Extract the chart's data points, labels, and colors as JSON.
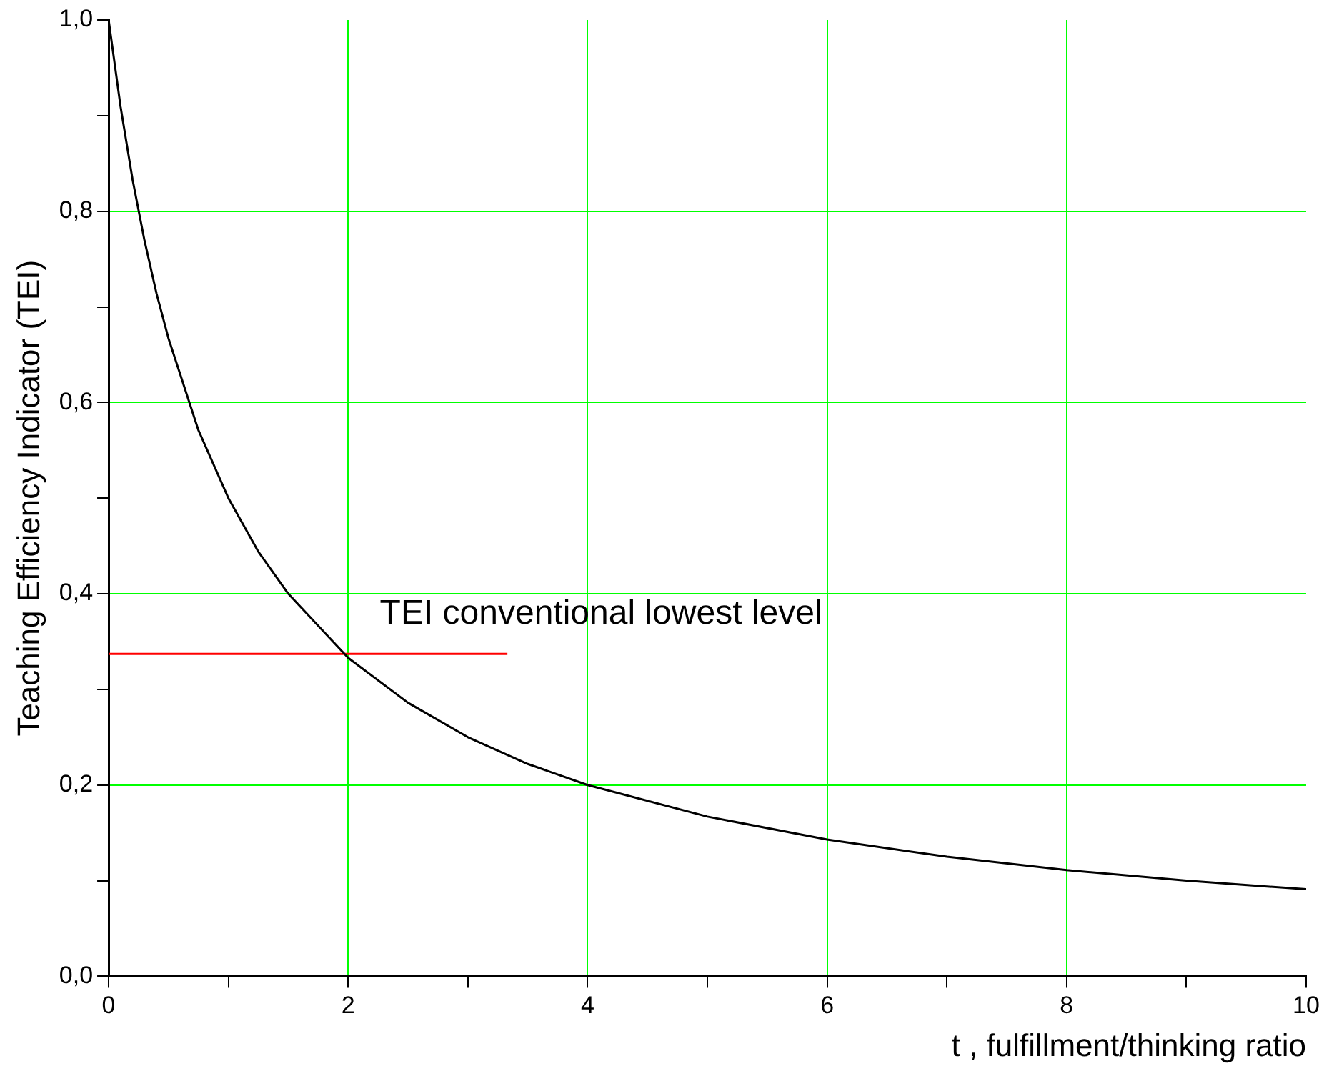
{
  "chart_data": {
    "type": "line",
    "xlabel": "t , fulfillment/thinking ratio",
    "ylabel": "Teaching Efficiency Indicator (TEI)",
    "xlim": [
      0,
      10
    ],
    "ylim": [
      0,
      1
    ],
    "xticks": [
      0,
      {
        "value": 1,
        "label": null
      },
      2,
      {
        "value": 3,
        "label": null
      },
      4,
      {
        "value": 5,
        "label": null
      },
      6,
      {
        "value": 7,
        "label": null
      },
      8,
      {
        "value": 9,
        "label": null
      },
      10
    ],
    "yticks": [
      {
        "value": 0,
        "label": "0,0"
      },
      {
        "value": 0.1,
        "label": null
      },
      {
        "value": 0.2,
        "label": "0,2"
      },
      {
        "value": 0.3,
        "label": null
      },
      {
        "value": 0.4,
        "label": "0,4"
      },
      {
        "value": 0.5,
        "label": null
      },
      {
        "value": 0.6,
        "label": "0,6"
      },
      {
        "value": 0.7,
        "label": null
      },
      {
        "value": 0.8,
        "label": "0,8"
      },
      {
        "value": 0.9,
        "label": null
      },
      {
        "value": 1,
        "label": "1,0"
      }
    ],
    "grid": true,
    "marker": "none",
    "line_style": "solid",
    "series": [
      {
        "type": "line",
        "color": "#000000",
        "x": [
          0,
          0.1,
          0.2,
          0.3,
          0.4,
          0.5,
          0.75,
          1,
          1.25,
          1.5,
          2,
          2.5,
          3,
          3.5,
          4,
          5,
          6,
          7,
          8,
          9,
          10
        ],
        "values": [
          1,
          0.909,
          0.833,
          0.769,
          0.714,
          0.667,
          0.571,
          0.5,
          0.444,
          0.4,
          0.333,
          0.286,
          0.25,
          0.222,
          0.2,
          0.167,
          0.143,
          0.125,
          0.111,
          0.1,
          0.091
        ]
      },
      {
        "type": "line",
        "name": "TEI conventional lowest level",
        "color": "#ff0000",
        "x": [
          0,
          3.33
        ],
        "values": [
          0.337,
          0.337
        ]
      }
    ]
  }
}
